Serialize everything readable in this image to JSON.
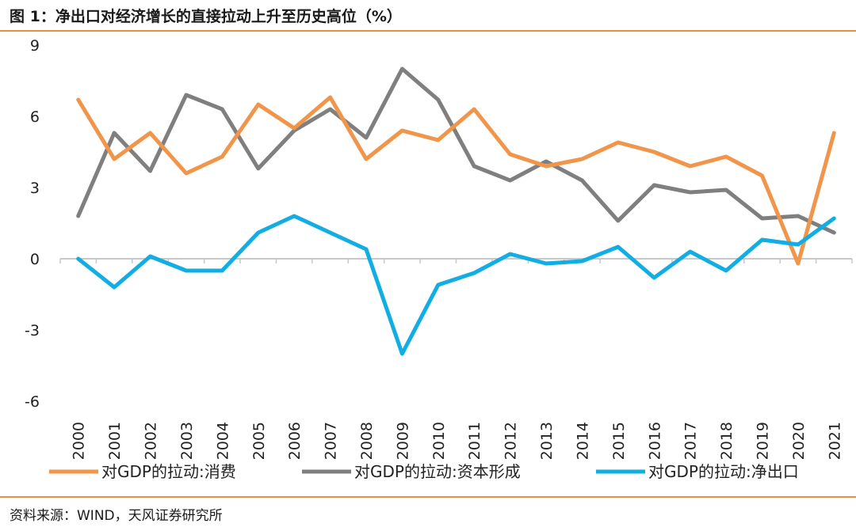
{
  "header": {
    "title": "图 1：净出口对经济增长的直接拉动上升至历史高位（%）"
  },
  "footer": {
    "source": "资料来源：WIND，天风证券研究所"
  },
  "chart_data": {
    "type": "line",
    "title": "图 1：净出口对经济增长的直接拉动上升至历史高位（%）",
    "xlabel": "",
    "ylabel": "",
    "x": [
      "2000",
      "2001",
      "2002",
      "2003",
      "2004",
      "2005",
      "2006",
      "2007",
      "2008",
      "2009",
      "2010",
      "2011",
      "2012",
      "2013",
      "2014",
      "2015",
      "2016",
      "2017",
      "2018",
      "2019",
      "2020",
      "2021"
    ],
    "ylim": [
      -6,
      9
    ],
    "yticks": [
      -6,
      -3,
      0,
      3,
      6,
      9
    ],
    "grid": false,
    "legend_position": "bottom",
    "series": [
      {
        "name": "对GDP的拉动:消费",
        "color": "#f0954a",
        "values": [
          6.7,
          4.2,
          5.3,
          3.6,
          4.3,
          6.5,
          5.5,
          6.8,
          4.2,
          5.4,
          5.0,
          6.3,
          4.4,
          3.9,
          4.2,
          4.9,
          4.5,
          3.9,
          4.3,
          3.5,
          -0.2,
          5.3
        ]
      },
      {
        "name": "对GDP的拉动:资本形成",
        "color": "#7f7f7f",
        "values": [
          1.8,
          5.3,
          3.7,
          6.9,
          6.3,
          3.8,
          5.4,
          6.3,
          5.1,
          8.0,
          6.7,
          3.9,
          3.3,
          4.1,
          3.3,
          1.6,
          3.1,
          2.8,
          2.9,
          1.7,
          1.8,
          1.1
        ]
      },
      {
        "name": "对GDP的拉动:净出口",
        "color": "#12aee3",
        "values": [
          0.0,
          -1.2,
          0.1,
          -0.5,
          -0.5,
          1.1,
          1.8,
          1.1,
          0.4,
          -4.0,
          -1.1,
          -0.6,
          0.2,
          -0.2,
          -0.1,
          0.5,
          -0.8,
          0.3,
          -0.5,
          0.8,
          0.6,
          1.7
        ]
      }
    ]
  }
}
